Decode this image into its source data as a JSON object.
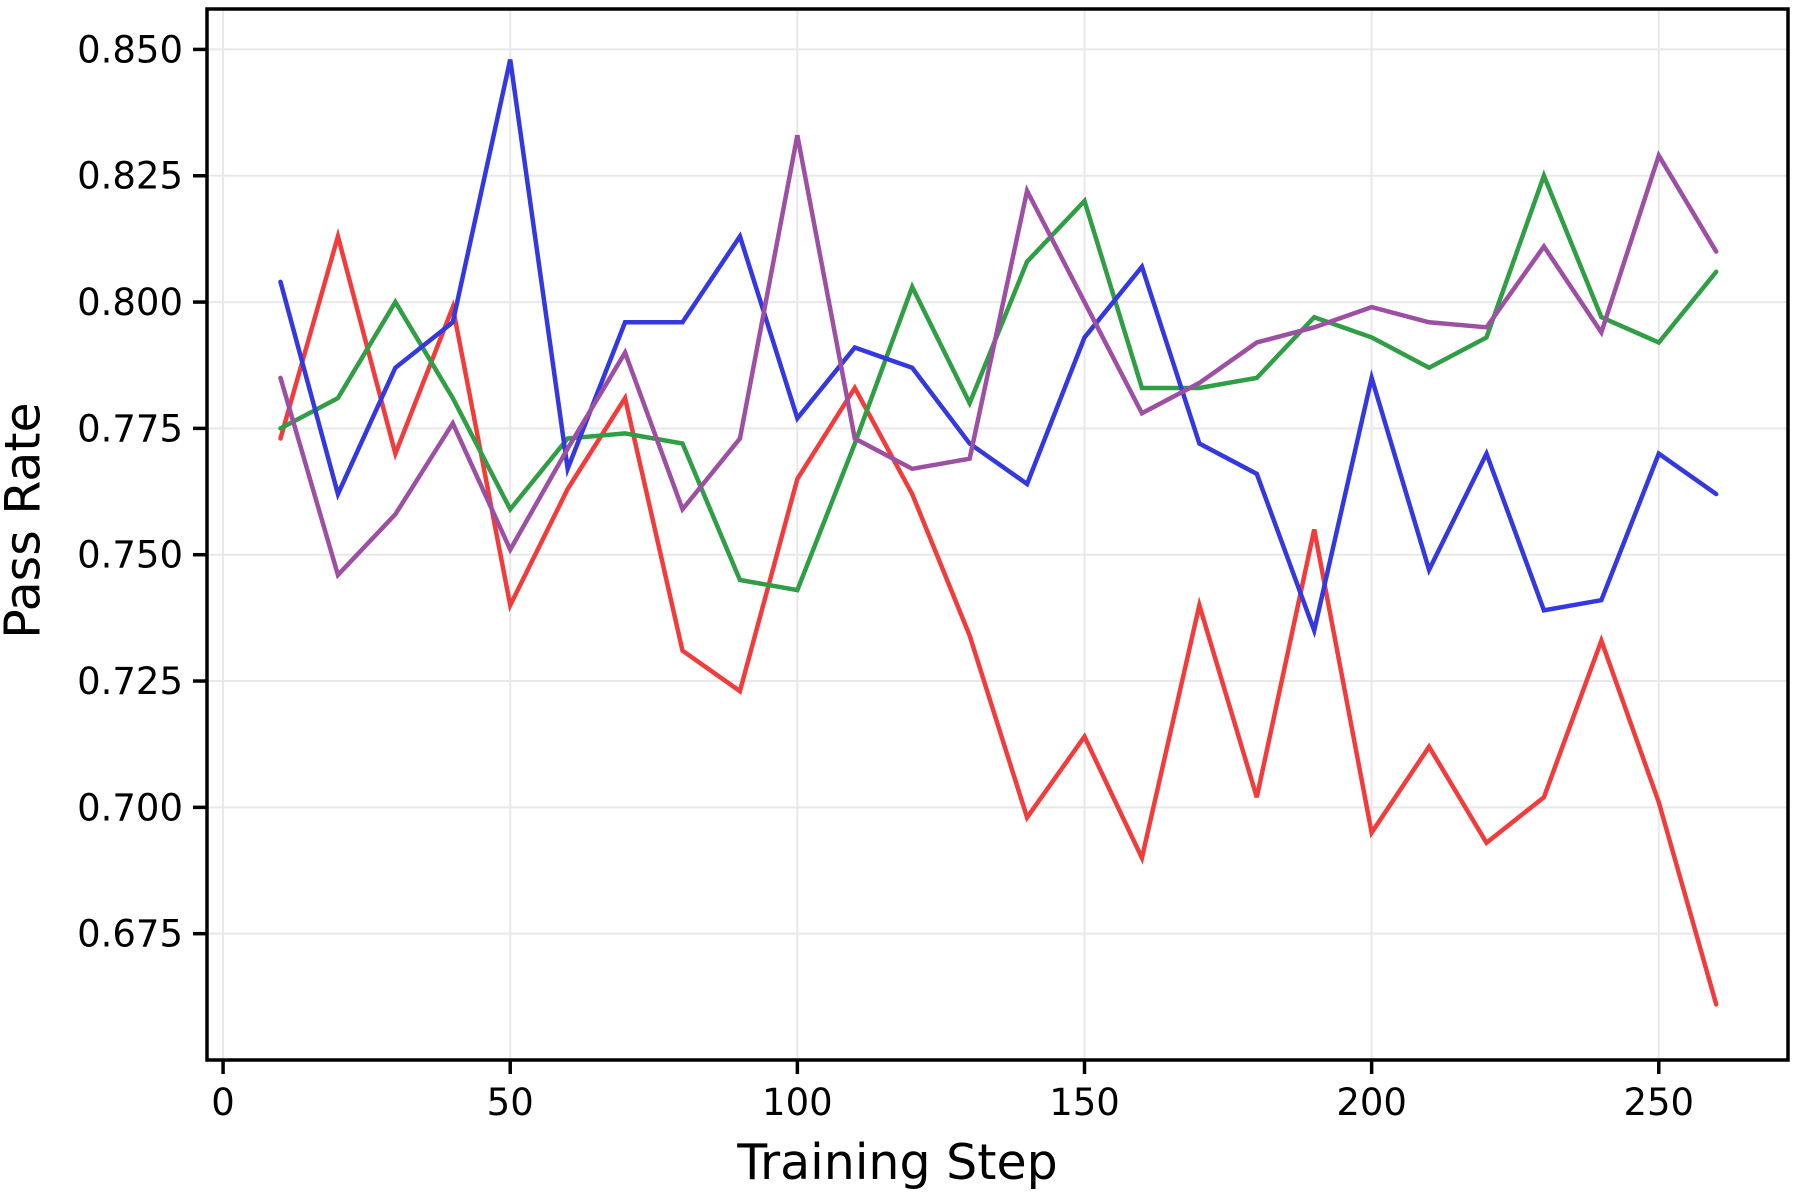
{
  "figure": {
    "background": "#ffffff"
  },
  "chart_data": {
    "type": "line",
    "title": "",
    "xlabel": "Training Step",
    "ylabel": "Pass Rate",
    "x": [
      10,
      20,
      30,
      40,
      50,
      60,
      70,
      80,
      90,
      100,
      110,
      120,
      130,
      140,
      150,
      160,
      170,
      180,
      190,
      200,
      210,
      220,
      230,
      240,
      250,
      260
    ],
    "series": [
      {
        "name": "red",
        "color": "#f23c3c",
        "values": [
          0.773,
          0.813,
          0.77,
          0.799,
          0.74,
          0.763,
          0.781,
          0.731,
          0.723,
          0.765,
          0.783,
          0.762,
          0.734,
          0.698,
          0.714,
          0.69,
          0.74,
          0.702,
          0.755,
          0.695,
          0.712,
          0.693,
          0.702,
          0.733,
          0.701,
          0.661
        ]
      },
      {
        "name": "green",
        "color": "#2f9e44",
        "values": [
          0.775,
          0.781,
          0.8,
          0.781,
          0.759,
          0.773,
          0.774,
          0.772,
          0.745,
          0.743,
          0.772,
          0.803,
          0.78,
          0.808,
          0.82,
          0.783,
          0.783,
          0.785,
          0.797,
          0.793,
          0.787,
          0.793,
          0.825,
          0.797,
          0.792,
          0.806
        ]
      },
      {
        "name": "blue",
        "color": "#3338e0",
        "values": [
          0.804,
          0.762,
          0.787,
          0.796,
          0.848,
          0.767,
          0.796,
          0.796,
          0.813,
          0.777,
          0.791,
          0.787,
          0.772,
          0.764,
          0.793,
          0.807,
          0.772,
          0.766,
          0.735,
          0.785,
          0.747,
          0.77,
          0.739,
          0.741,
          0.77,
          0.762
        ]
      },
      {
        "name": "purple",
        "color": "#9d4fa3",
        "values": [
          0.785,
          0.746,
          0.758,
          0.776,
          0.751,
          0.771,
          0.79,
          0.759,
          0.773,
          0.833,
          0.773,
          0.767,
          0.769,
          0.822,
          0.8,
          0.778,
          0.784,
          0.792,
          0.795,
          0.799,
          0.796,
          0.795,
          0.811,
          0.794,
          0.829,
          0.81
        ]
      }
    ],
    "xticks": [
      0,
      50,
      100,
      150,
      200,
      250
    ],
    "xtick_labels": [
      "0",
      "50",
      "100",
      "150",
      "200",
      "250"
    ],
    "yticks": [
      0.85,
      0.825,
      0.8,
      0.775,
      0.75,
      0.725,
      0.7,
      0.675
    ],
    "ytick_labels": [
      "0.850",
      "0.825",
      "0.800",
      "0.775",
      "0.750",
      "0.725",
      "0.700",
      "0.675"
    ],
    "xlim": [
      -2.8,
      272.5
    ],
    "ylim": [
      0.65,
      0.858
    ],
    "grid": true,
    "legend": "none",
    "grid_color": "#e8e8e8",
    "spine_color": "#000000",
    "line_width": 4.5
  }
}
